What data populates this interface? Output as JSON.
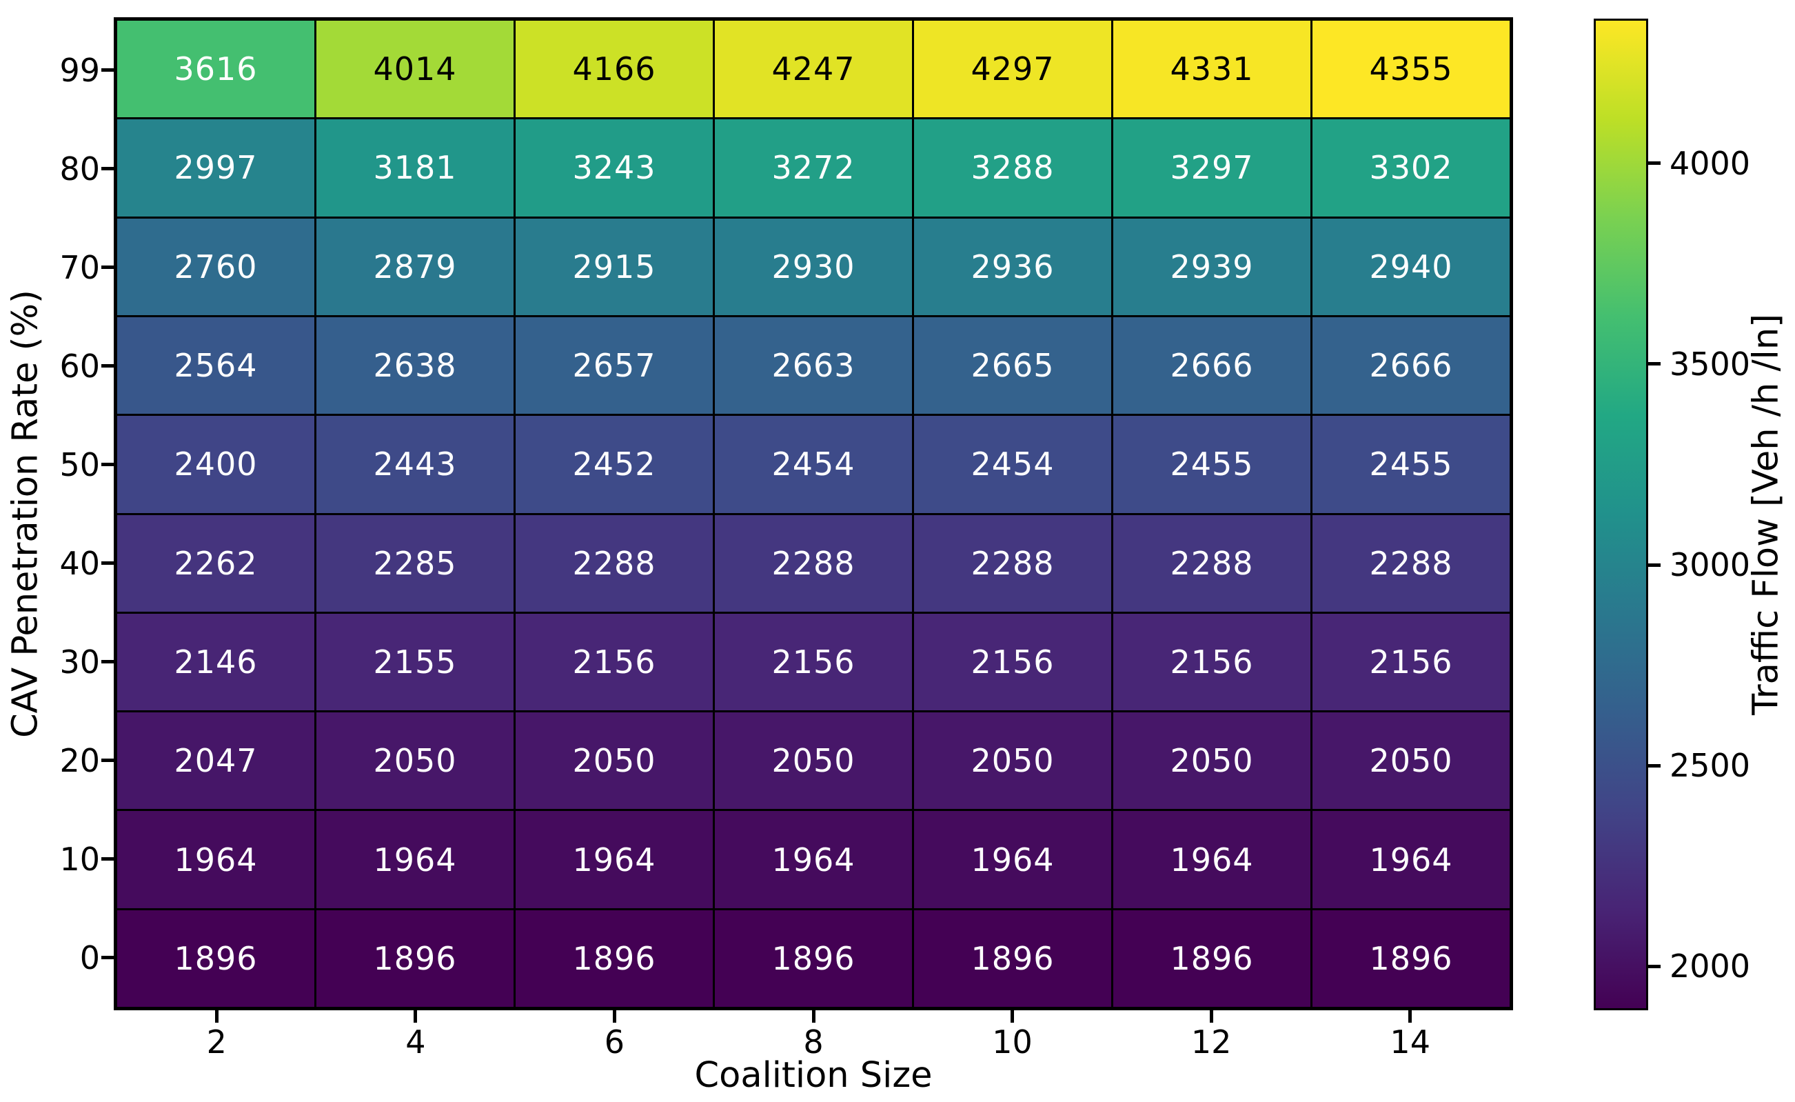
{
  "chart_data": {
    "type": "heatmap",
    "title": "",
    "xlabel": "Coalition Size",
    "ylabel": "CAV Penetration Rate (%)",
    "colorbar_label": "Traffic Flow [Veh /h /ln]",
    "colormap": "viridis",
    "x_categories": [
      2,
      4,
      6,
      8,
      10,
      12,
      14
    ],
    "y_categories": [
      99,
      80,
      70,
      60,
      50,
      40,
      30,
      20,
      10,
      0
    ],
    "values": [
      [
        3616,
        4014,
        4166,
        4247,
        4297,
        4331,
        4355
      ],
      [
        2997,
        3181,
        3243,
        3272,
        3288,
        3297,
        3302
      ],
      [
        2760,
        2879,
        2915,
        2930,
        2936,
        2939,
        2940
      ],
      [
        2564,
        2638,
        2657,
        2663,
        2665,
        2666,
        2666
      ],
      [
        2400,
        2443,
        2452,
        2454,
        2454,
        2455,
        2455
      ],
      [
        2262,
        2285,
        2288,
        2288,
        2288,
        2288,
        2288
      ],
      [
        2146,
        2155,
        2156,
        2156,
        2156,
        2156,
        2156
      ],
      [
        2047,
        2050,
        2050,
        2050,
        2050,
        2050,
        2050
      ],
      [
        1964,
        1964,
        1964,
        1964,
        1964,
        1964,
        1964
      ],
      [
        1896,
        1896,
        1896,
        1896,
        1896,
        1896,
        1896
      ]
    ],
    "vmin": 1896,
    "vmax": 4355,
    "colorbar_ticks": [
      4000,
      3500,
      3000,
      2500,
      2000
    ],
    "grid_line_color": "#000000",
    "annotation_text_colors": {
      "dark_cells": "#ffffff",
      "light_cells": "#000000"
    },
    "legend_position": "right-colorbar"
  }
}
